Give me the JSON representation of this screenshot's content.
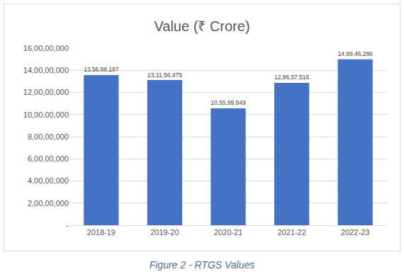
{
  "chart_data": {
    "type": "bar",
    "title": "Value (₹ Crore)",
    "caption": "Figure 2 - RTGS Values",
    "categories": [
      "2018-19",
      "2019-20",
      "2020-21",
      "2021-22",
      "2022-23"
    ],
    "values": [
      135688187,
      131156475,
      105599849,
      128657516,
      149946286
    ],
    "value_labels": [
      "13,56,88,187",
      "13,11,56,475",
      "10,55,99,849",
      "12,86,57,516",
      "14,99,46,286"
    ],
    "data_labels": true,
    "color": "#4472c4",
    "ylim": [
      0,
      160000000
    ],
    "yticks": [
      {
        "value": 0,
        "label": "-"
      },
      {
        "value": 20000000,
        "label": "2,00,00,000"
      },
      {
        "value": 40000000,
        "label": "4,00,00,000"
      },
      {
        "value": 60000000,
        "label": "6,00,00,000"
      },
      {
        "value": 80000000,
        "label": "8,00,00,000"
      },
      {
        "value": 100000000,
        "label": "10,00,00,000"
      },
      {
        "value": 120000000,
        "label": "12,00,00,000"
      },
      {
        "value": 140000000,
        "label": "14,00,00,000"
      },
      {
        "value": 160000000,
        "label": "16,00,00,000"
      }
    ],
    "grid": true
  }
}
